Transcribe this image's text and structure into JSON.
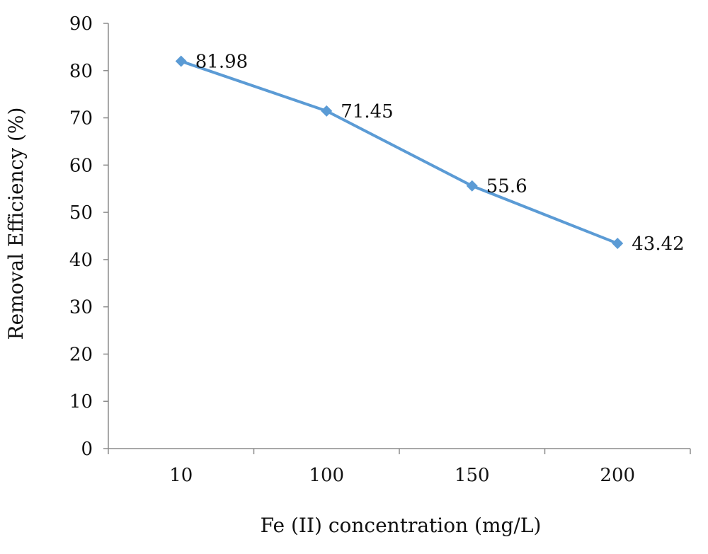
{
  "chart_data": {
    "type": "line",
    "categories": [
      "10",
      "100",
      "150",
      "200"
    ],
    "series": [
      {
        "values": [
          81.98,
          71.45,
          55.6,
          43.42
        ]
      }
    ],
    "data_labels": [
      "81.98",
      "71.45",
      "55.6",
      "43.42"
    ],
    "xlabel": "Fe (II) concentration (mg/L)",
    "ylabel": "Removal Efficiency (%)",
    "ylim": [
      0,
      90
    ],
    "yticks": [
      "0",
      "10",
      "20",
      "30",
      "40",
      "50",
      "60",
      "70",
      "80",
      "90"
    ],
    "grid": false,
    "legend": "none",
    "line_color": "#5b9bd5"
  }
}
